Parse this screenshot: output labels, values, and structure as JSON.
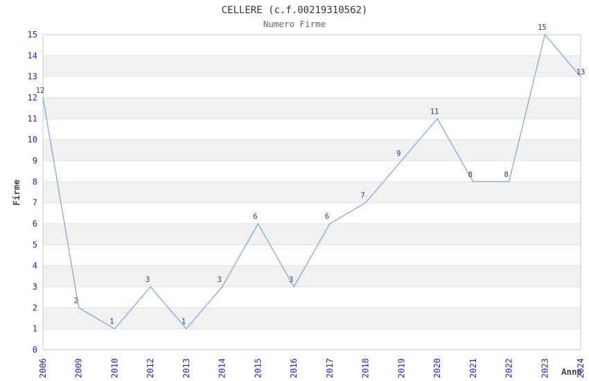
{
  "chart_data": {
    "type": "line",
    "title": "CELLERE (c.f.00219310562)",
    "subtitle": "Numero Firme",
    "xlabel": "Anno",
    "ylabel": "Firme",
    "categories": [
      "2006",
      "2009",
      "2010",
      "2012",
      "2013",
      "2014",
      "2015",
      "2016",
      "2017",
      "2018",
      "2019",
      "2020",
      "2021",
      "2022",
      "2023",
      "2024"
    ],
    "values": [
      12,
      2,
      1,
      3,
      1,
      3,
      6,
      3,
      6,
      7,
      9,
      11,
      8,
      8,
      15,
      13
    ],
    "ylim": [
      0,
      15
    ],
    "y_tick_step": 1,
    "grid": "horizontal-bands",
    "legend": "none",
    "colors": {
      "line": "#79ade0",
      "tick_label": "#2222cc",
      "data_label": "#333380",
      "band": "#f1f1f1",
      "gridline": "#e0e0e0",
      "border": "#c9c9c9",
      "title": "#333333",
      "subtitle": "#666666",
      "axis_label": "#444444",
      "background": "#ffffff"
    }
  }
}
